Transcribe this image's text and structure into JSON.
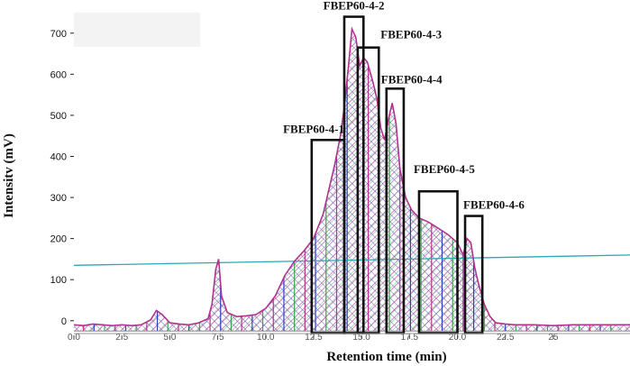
{
  "chart_data": {
    "type": "area",
    "title": "",
    "xlabel": "Retention time (min)",
    "ylabel": "Intensitv (mV)",
    "xlim": [
      0,
      29
    ],
    "ylim": [
      -40,
      750
    ],
    "x_ticks": [
      0.0,
      2.5,
      5.0,
      7.5,
      10.0,
      12.5,
      15.0,
      17.5,
      20.0,
      22.5,
      25.0
    ],
    "x_tick_labels": [
      "0.0",
      "2.5",
      "5.0",
      "7.5",
      "10.0",
      "12.5",
      "15.0",
      "17.5",
      "20.0",
      "22.5",
      "25"
    ],
    "y_ticks": [
      0,
      100,
      200,
      300,
      400,
      500,
      600,
      700
    ],
    "y_tick_labels": [
      "0",
      "100",
      "200",
      "300",
      "400",
      "500",
      "600",
      "700"
    ],
    "series": [
      {
        "type": "line",
        "x": [
          0,
          0.5,
          1,
          1.5,
          2,
          2.5,
          3,
          3.5,
          4,
          4.3,
          4.6,
          5,
          5.5,
          6,
          6.5,
          7,
          7.2,
          7.4,
          7.55,
          7.7,
          8,
          8.5,
          9,
          9.5,
          10,
          10.5,
          11,
          11.5,
          12,
          12.5,
          13,
          13.3,
          13.6,
          13.9,
          14.1,
          14.3,
          14.5,
          14.7,
          14.9,
          15.1,
          15.3,
          15.6,
          15.8,
          16,
          16.2,
          16.4,
          16.6,
          16.8,
          17,
          17.3,
          17.6,
          18,
          18.5,
          19,
          19.5,
          20,
          20.3,
          20.5,
          20.7,
          20.9,
          21.1,
          21.4,
          21.7,
          22,
          22.5,
          23,
          24,
          25,
          26,
          27,
          28,
          29
        ],
        "y": [
          -10,
          -12,
          -8,
          -10,
          -12,
          -10,
          -12,
          -10,
          2,
          25,
          15,
          -5,
          -8,
          -10,
          -5,
          5,
          40,
          125,
          150,
          60,
          20,
          10,
          12,
          15,
          30,
          60,
          110,
          145,
          170,
          200,
          260,
          320,
          380,
          450,
          520,
          610,
          710,
          690,
          620,
          640,
          630,
          580,
          540,
          470,
          440,
          490,
          530,
          480,
          370,
          300,
          270,
          250,
          240,
          225,
          210,
          190,
          160,
          200,
          190,
          130,
          90,
          40,
          10,
          -5,
          -8,
          -10,
          -10,
          -12,
          -10,
          -10,
          -10,
          -10
        ]
      },
      {
        "type": "line",
        "name": "",
        "x": [
          0,
          29
        ],
        "y": [
          135,
          160
        ]
      }
    ],
    "fractions": [
      {
        "label": "FBEP60-4-1",
        "x_start": 12.4,
        "x_end": 14.1,
        "y_top": 440
      },
      {
        "label": "FBEP60-4-2",
        "x_start": 14.1,
        "x_end": 15.1,
        "y_top": 740
      },
      {
        "label": "FBEP60-4-3",
        "x_start": 14.8,
        "x_end": 15.9,
        "y_top": 665
      },
      {
        "label": "FBEP60-4-4",
        "x_start": 16.3,
        "x_end": 17.2,
        "y_top": 565
      },
      {
        "label": "FBEP60-4-5",
        "x_start": 18.0,
        "x_end": 20.0,
        "y_top": 315
      },
      {
        "label": "FBEP60-4-6",
        "x_start": 20.4,
        "x_end": 21.3,
        "y_top": 255
      }
    ],
    "grid": false,
    "legend": "none"
  },
  "colors": {
    "trace": "#b0338f",
    "baseline": "#2aa9b4",
    "hatch": [
      "#b0338f",
      "#2a3fbf",
      "#3aa34a"
    ],
    "box": "#111111"
  }
}
